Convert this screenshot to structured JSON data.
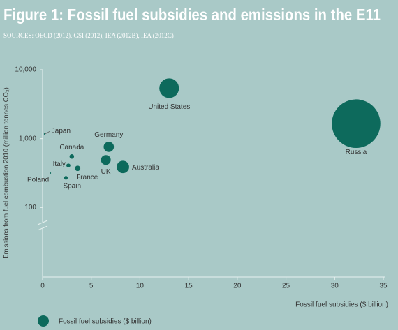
{
  "chart_data": {
    "type": "scatter",
    "title": "Figure 1: Fossil fuel subsidies and emissions in the E11",
    "subtitle": "SOURCES: OECD (2012), GSI (2012), IEA (2012B), IEA (2012C)",
    "x_label": "Fossil fuel subsidies ($ billion)",
    "y_label": "Emissions from fuel combustion 2010 (million tonnes CO₂)",
    "xlim": [
      0,
      35
    ],
    "xticks": [
      0,
      5,
      10,
      15,
      20,
      25,
      30,
      35
    ],
    "ylim": [
      10,
      10000
    ],
    "y_scale": "log",
    "yticks": [
      {
        "value": 100,
        "label": "100"
      },
      {
        "value": 1000,
        "label": "1,000"
      },
      {
        "value": 10000,
        "label": "10,000"
      }
    ],
    "series": [
      {
        "name": "Fossil fuel subsidies ($ billion)",
        "color": "#0d6a5c",
        "point_labels": [
          "United States",
          "Russia",
          "Germany",
          "Canada",
          "Italy",
          "UK",
          "Australia",
          "France",
          "Spain",
          "Poland",
          "Japan"
        ],
        "x": [
          13,
          32.2,
          6.8,
          3.0,
          2.65,
          6.5,
          8.25,
          3.6,
          2.4,
          0.8,
          0.2
        ],
        "values": [
          5400,
          1650,
          760,
          550,
          407,
          490,
          388,
          370,
          270,
          316,
          1170
        ]
      }
    ]
  }
}
